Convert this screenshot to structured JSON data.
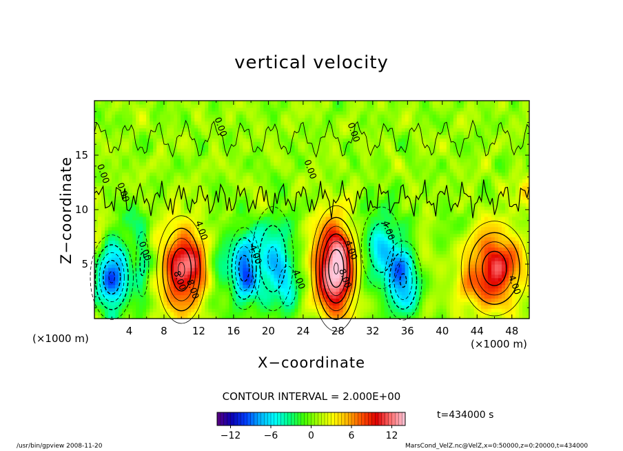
{
  "chart_data": {
    "type": "heatmap",
    "title": "vertical velocity",
    "xlabel": "X−coordinate",
    "ylabel": "Z−coordinate",
    "x_unit_label": "(×1000 m)",
    "x_unit_label_right": "(×1000 m)",
    "xlim": [
      0,
      50
    ],
    "ylim": [
      0,
      20
    ],
    "xticks": [
      4,
      8,
      12,
      16,
      20,
      24,
      28,
      32,
      36,
      40,
      44,
      48
    ],
    "yticks": [
      5,
      10,
      15
    ],
    "contour_interval": "CONTOUR INTERVAL = 2.000E+00",
    "colorbar": {
      "range": [
        -14,
        14
      ],
      "ticks": [
        -12,
        -6,
        0,
        6,
        12
      ],
      "tick_labels": [
        "−12",
        "−6",
        "0",
        "6",
        "12"
      ]
    },
    "contour_labels": [
      {
        "text": "0.00",
        "x": 29.5,
        "z": 17.0
      },
      {
        "text": "0.00",
        "x": 14.2,
        "z": 17.5
      },
      {
        "text": "0.00",
        "x": 24.5,
        "z": 13.6
      },
      {
        "text": "0.00",
        "x": 0.7,
        "z": 13.2
      },
      {
        "text": "0.00",
        "x": 3.0,
        "z": 11.5
      },
      {
        "text": "4.00",
        "x": 12.0,
        "z": 8.0
      },
      {
        "text": "4.00",
        "x": 18.2,
        "z": 5.8
      },
      {
        "text": "4.00",
        "x": 23.2,
        "z": 3.5
      },
      {
        "text": "4.00",
        "x": 29.2,
        "z": 6.2
      },
      {
        "text": "4.00",
        "x": 33.5,
        "z": 8.0
      },
      {
        "text": "4.00",
        "x": 48.0,
        "z": 3.0
      },
      {
        "text": "0.00",
        "x": 5.5,
        "z": 6.1
      },
      {
        "text": "8.00",
        "x": 9.5,
        "z": 3.4
      },
      {
        "text": "8.00",
        "x": 11.0,
        "z": 2.6
      },
      {
        "text": "8.00",
        "x": 28.5,
        "z": 3.6
      }
    ],
    "blobs": [
      {
        "x": 2.0,
        "z": 3.8,
        "sx": 1.4,
        "sz": 2.2,
        "amp": -10.5
      },
      {
        "x": 5.5,
        "z": 5.0,
        "sx": 0.6,
        "sz": 2.4,
        "amp": -4.5
      },
      {
        "x": 10.0,
        "z": 4.5,
        "sx": 1.6,
        "sz": 2.8,
        "amp": 10.5
      },
      {
        "x": 12.0,
        "z": 5.0,
        "sx": 0.9,
        "sz": 2.0,
        "amp": 3.5
      },
      {
        "x": 17.2,
        "z": 4.6,
        "sx": 1.1,
        "sz": 2.2,
        "amp": -9.5
      },
      {
        "x": 14.5,
        "z": 5.0,
        "sx": 0.8,
        "sz": 3.0,
        "amp": -2.5
      },
      {
        "x": 20.5,
        "z": 5.5,
        "sx": 1.6,
        "sz": 3.2,
        "amp": -6.5
      },
      {
        "x": 22.2,
        "z": 3.0,
        "sx": 0.9,
        "sz": 1.6,
        "amp": -4.0
      },
      {
        "x": 27.8,
        "z": 4.6,
        "sx": 1.5,
        "sz": 3.0,
        "amp": 14.5
      },
      {
        "x": 25.5,
        "z": 5.5,
        "sx": 0.9,
        "sz": 3.0,
        "amp": 2.0
      },
      {
        "x": 33.0,
        "z": 6.5,
        "sx": 1.6,
        "sz": 2.6,
        "amp": -6.0
      },
      {
        "x": 35.5,
        "z": 3.5,
        "sx": 1.3,
        "sz": 2.2,
        "amp": -8.5
      },
      {
        "x": 38.0,
        "z": 6.5,
        "sx": 0.8,
        "sz": 2.0,
        "amp": 1.8
      },
      {
        "x": 46.0,
        "z": 4.6,
        "sx": 2.2,
        "sz": 2.5,
        "amp": 10.0
      },
      {
        "x": 42.5,
        "z": 2.5,
        "sx": 0.8,
        "sz": 1.2,
        "amp": 3.0
      },
      {
        "x": 49.5,
        "z": 11.8,
        "sx": 0.9,
        "sz": 1.0,
        "amp": 3.0
      },
      {
        "x": 4.0,
        "z": 9.0,
        "sx": 1.0,
        "sz": 1.0,
        "amp": -3.0
      },
      {
        "x": 0.5,
        "z": 7.0,
        "sx": 0.6,
        "sz": 2.5,
        "amp": 2.5
      },
      {
        "x": 19.5,
        "z": 10.5,
        "sx": 0.8,
        "sz": 1.2,
        "amp": 2.5
      },
      {
        "x": 40.5,
        "z": 8.5,
        "sx": 1.2,
        "sz": 1.2,
        "amp": -1.5
      }
    ]
  },
  "colors": {
    "background": "#ffffff",
    "colormap": [
      "#5a0080",
      "#0a00b4",
      "#0040ff",
      "#00b4ff",
      "#00ffff",
      "#00ff80",
      "#40ff00",
      "#aaff00",
      "#ffff00",
      "#ffb400",
      "#ff5000",
      "#e00000",
      "#ff7070",
      "#ffc8dc"
    ]
  },
  "labels": {
    "time": "t=434000 s",
    "footer_left": "/usr/bin/gpview  2008-11-20",
    "footer_right": "MarsCond_VelZ.nc@VelZ,x=0:50000,z=0:20000,t=434000"
  }
}
